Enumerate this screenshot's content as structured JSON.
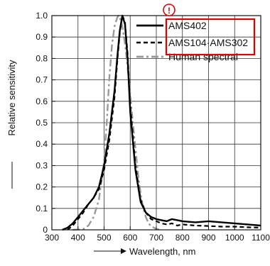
{
  "chart_data": {
    "type": "line",
    "xlabel": "Wavelength, nm",
    "ylabel": "Relative sensitivity",
    "xlim": [
      300,
      1100
    ],
    "ylim": [
      0,
      1.0
    ],
    "x_ticks": [
      "300",
      "400",
      "500",
      "600",
      "700",
      "800",
      "900",
      "1000",
      "1100"
    ],
    "y_ticks": [
      "0",
      "0.1",
      "0.2",
      "0.3",
      "0.4",
      "0.5",
      "0.6",
      "0.7",
      "0.8",
      "0.9",
      "1.0"
    ],
    "grid": true,
    "legend_position": "top-right",
    "annotation": "!",
    "highlight_color": "#e00000",
    "series": [
      {
        "name": "AMS402",
        "style": "solid",
        "color": "#000000",
        "points": [
          [
            340,
            0
          ],
          [
            360,
            0.01
          ],
          [
            380,
            0.03
          ],
          [
            400,
            0.06
          ],
          [
            420,
            0.09
          ],
          [
            440,
            0.12
          ],
          [
            460,
            0.15
          ],
          [
            480,
            0.2
          ],
          [
            500,
            0.3
          ],
          [
            520,
            0.45
          ],
          [
            540,
            0.65
          ],
          [
            550,
            0.8
          ],
          [
            560,
            0.93
          ],
          [
            570,
            1.0
          ],
          [
            580,
            0.96
          ],
          [
            590,
            0.8
          ],
          [
            600,
            0.55
          ],
          [
            620,
            0.28
          ],
          [
            640,
            0.13
          ],
          [
            660,
            0.08
          ],
          [
            680,
            0.06
          ],
          [
            700,
            0.05
          ],
          [
            720,
            0.045
          ],
          [
            740,
            0.04
          ],
          [
            760,
            0.05
          ],
          [
            800,
            0.04
          ],
          [
            850,
            0.035
          ],
          [
            900,
            0.04
          ],
          [
            950,
            0.035
          ],
          [
            1000,
            0.03
          ],
          [
            1050,
            0.025
          ],
          [
            1100,
            0.02
          ]
        ]
      },
      {
        "name": "AMS104·AMS302",
        "style": "dashed",
        "color": "#000000",
        "points": [
          [
            360,
            0
          ],
          [
            380,
            0.02
          ],
          [
            400,
            0.05
          ],
          [
            420,
            0.08
          ],
          [
            440,
            0.12
          ],
          [
            460,
            0.15
          ],
          [
            480,
            0.19
          ],
          [
            500,
            0.28
          ],
          [
            520,
            0.42
          ],
          [
            540,
            0.62
          ],
          [
            550,
            0.78
          ],
          [
            560,
            0.92
          ],
          [
            570,
            1.0
          ],
          [
            580,
            0.97
          ],
          [
            590,
            0.82
          ],
          [
            600,
            0.58
          ],
          [
            620,
            0.3
          ],
          [
            640,
            0.14
          ],
          [
            660,
            0.08
          ],
          [
            680,
            0.05
          ],
          [
            700,
            0.04
          ],
          [
            720,
            0.03
          ],
          [
            740,
            0.025
          ],
          [
            760,
            0.03
          ],
          [
            780,
            0.02
          ],
          [
            800,
            0.025
          ],
          [
            850,
            0.02
          ],
          [
            900,
            0.018
          ],
          [
            950,
            0.015
          ],
          [
            1000,
            0.015
          ],
          [
            1050,
            0.012
          ],
          [
            1100,
            0.01
          ]
        ]
      },
      {
        "name": "Human spectral",
        "style": "dashdot",
        "color": "#999999",
        "points": [
          [
            380,
            0
          ],
          [
            420,
            0.003
          ],
          [
            440,
            0.02
          ],
          [
            460,
            0.06
          ],
          [
            480,
            0.14
          ],
          [
            500,
            0.32
          ],
          [
            510,
            0.5
          ],
          [
            520,
            0.71
          ],
          [
            530,
            0.86
          ],
          [
            540,
            0.95
          ],
          [
            550,
            0.99
          ],
          [
            555,
            1.0
          ],
          [
            560,
            0.99
          ],
          [
            570,
            0.95
          ],
          [
            580,
            0.87
          ],
          [
            590,
            0.76
          ],
          [
            600,
            0.63
          ],
          [
            610,
            0.5
          ],
          [
            620,
            0.38
          ],
          [
            630,
            0.26
          ],
          [
            640,
            0.17
          ],
          [
            650,
            0.1
          ],
          [
            660,
            0.06
          ],
          [
            670,
            0.03
          ],
          [
            680,
            0.017
          ],
          [
            700,
            0.004
          ],
          [
            720,
            0
          ]
        ]
      }
    ]
  }
}
